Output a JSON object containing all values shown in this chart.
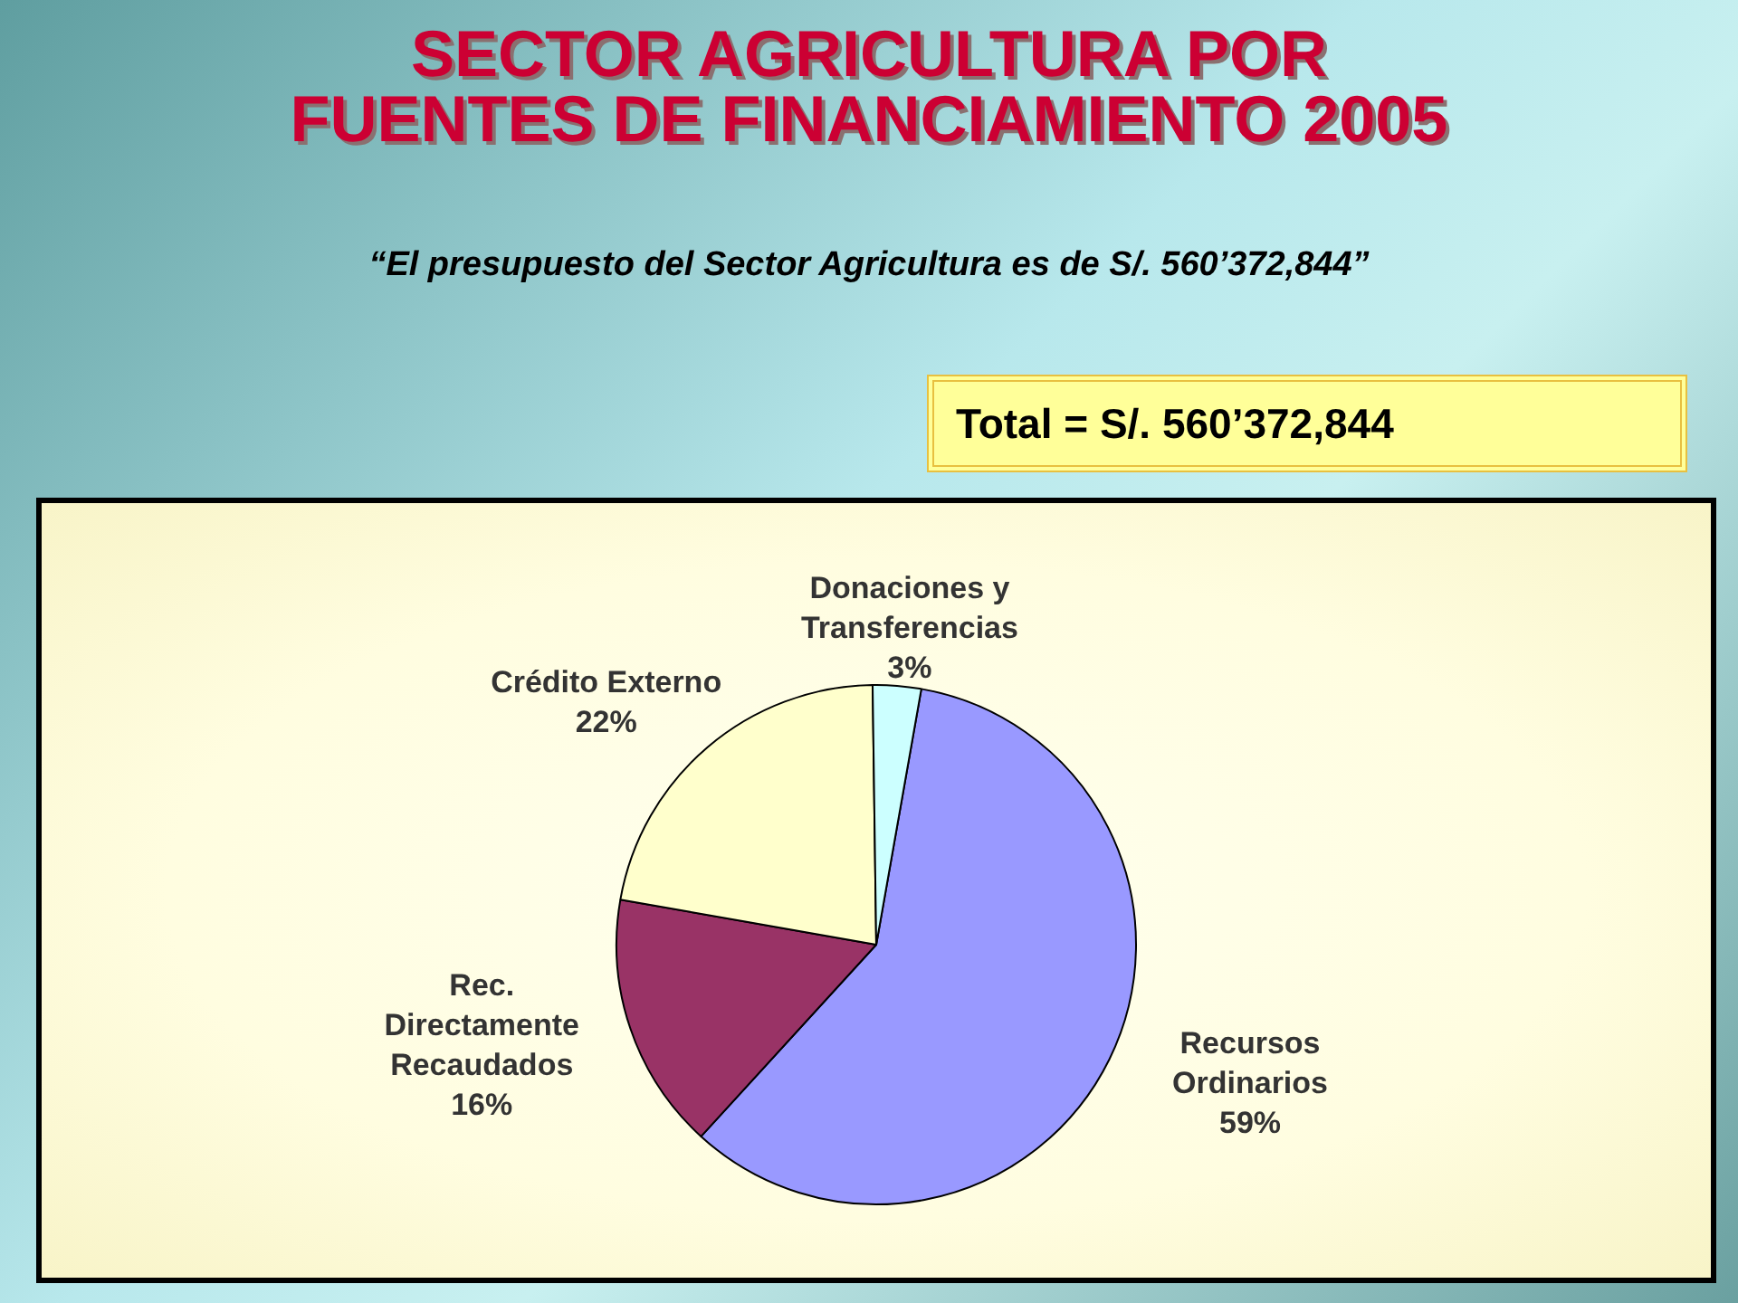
{
  "chart_data": {
    "type": "pie",
    "title": "SECTOR  AGRICULTURA POR FUENTES DE FINANCIAMIENTO 2005",
    "subtitle": "“El presupuesto del Sector Agricultura es de S/. 560’372,844”",
    "categories": [
      "Recursos Ordinarios",
      "Rec. Directamente Recaudados",
      "Crédito Externo",
      "Donaciones y Transferencias"
    ],
    "values": [
      59,
      16,
      22,
      3
    ],
    "value_labels": [
      "59%",
      "16%",
      "22%",
      "3%"
    ],
    "colors": [
      "#9999ff",
      "#993366",
      "#ffffcc",
      "#ccffff"
    ],
    "annotations": [
      "Total  =  S/.   560’372,844"
    ],
    "legend": false
  }
}
